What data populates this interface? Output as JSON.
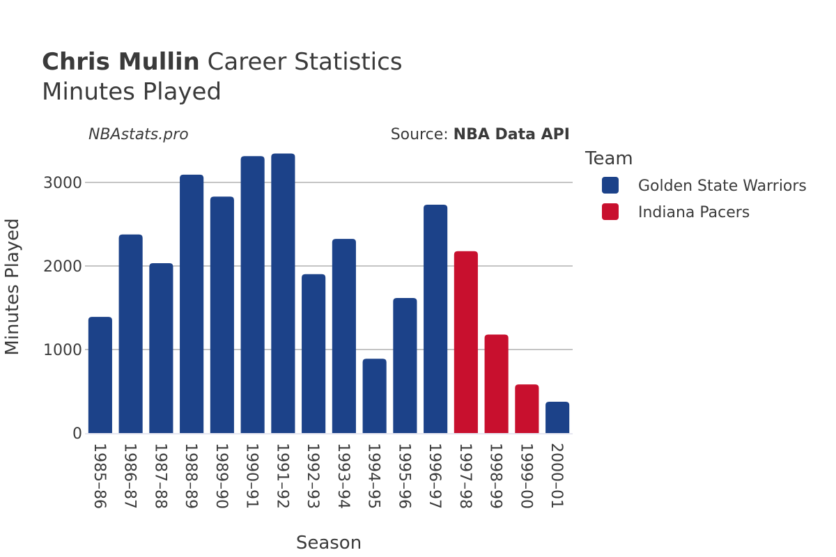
{
  "chart_data": {
    "type": "bar",
    "title_bold": "Chris Mullin",
    "title_rest": " Career Statistics",
    "subtitle": "Minutes Played",
    "watermark": "NBAstats.pro",
    "source_prefix": "Source: ",
    "source_name": "NBA Data API",
    "xlabel": "Season",
    "ylabel": "Minutes Played",
    "ylim": [
      0,
      3400
    ],
    "yticks": [
      0,
      1000,
      2000,
      3000
    ],
    "categories": [
      "1985–86",
      "1986–87",
      "1987–88",
      "1988–89",
      "1989–90",
      "1990–91",
      "1991–92",
      "1992–93",
      "1993–94",
      "1994–95",
      "1995–96",
      "1996–97",
      "1997–98",
      "1998–99",
      "1999–00",
      "2000–01"
    ],
    "values": [
      1391,
      2377,
      2033,
      3093,
      2830,
      3315,
      3346,
      1902,
      2324,
      890,
      1617,
      2733,
      2177,
      1179,
      582,
      375
    ],
    "teams": [
      "Golden State Warriors",
      "Golden State Warriors",
      "Golden State Warriors",
      "Golden State Warriors",
      "Golden State Warriors",
      "Golden State Warriors",
      "Golden State Warriors",
      "Golden State Warriors",
      "Golden State Warriors",
      "Golden State Warriors",
      "Golden State Warriors",
      "Golden State Warriors",
      "Indiana Pacers",
      "Indiana Pacers",
      "Indiana Pacers",
      "Golden State Warriors"
    ],
    "legend": {
      "title": "Team",
      "entries": [
        {
          "name": "Golden State Warriors",
          "color": "#1c4289"
        },
        {
          "name": "Indiana Pacers",
          "color": "#c8102e"
        }
      ]
    }
  }
}
